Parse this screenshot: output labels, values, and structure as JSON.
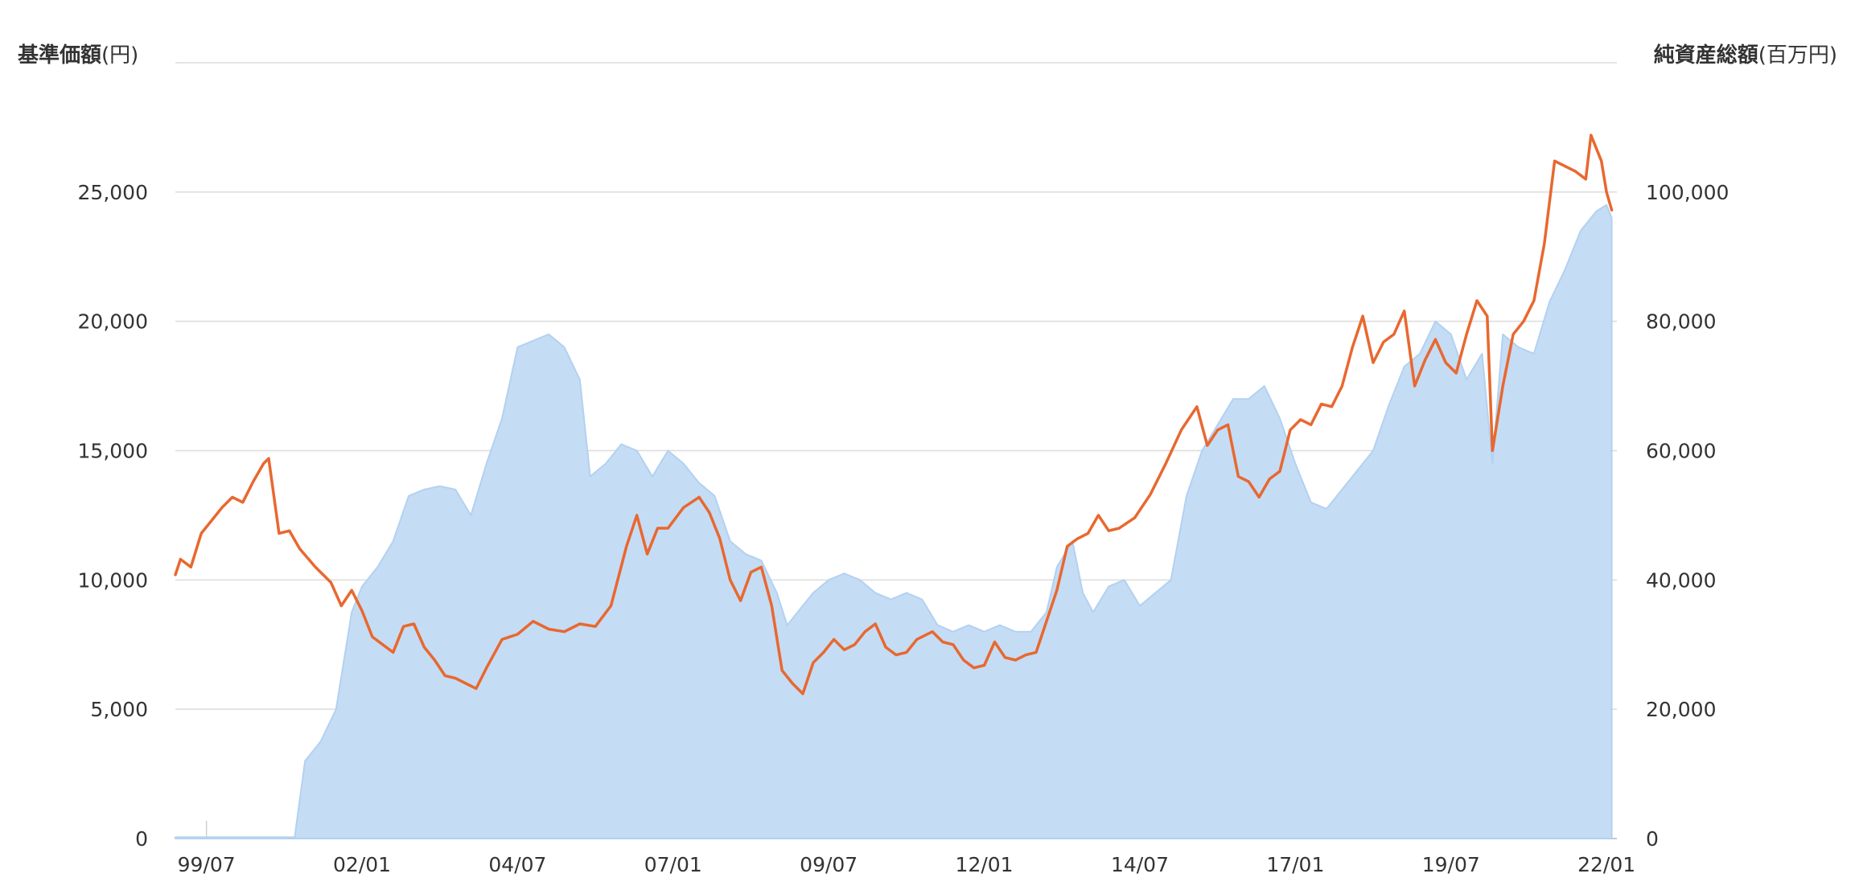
{
  "chart_data": {
    "type": "line",
    "left_axis_title": "基準価額",
    "left_axis_unit": "(円)",
    "right_axis_title": "純資産総額",
    "right_axis_unit": "(百万円)",
    "left_ylim": [
      0,
      30000
    ],
    "left_ticks": [
      {
        "value": 0,
        "label": "0"
      },
      {
        "value": 5000,
        "label": "5,000"
      },
      {
        "value": 10000,
        "label": "10,000"
      },
      {
        "value": 15000,
        "label": "15,000"
      },
      {
        "value": 20000,
        "label": "20,000"
      },
      {
        "value": 25000,
        "label": "25,000"
      }
    ],
    "right_ylim": [
      0,
      120000
    ],
    "right_ticks": [
      {
        "value": 0,
        "label": "0"
      },
      {
        "value": 20000,
        "label": "20,000"
      },
      {
        "value": 40000,
        "label": "40,000"
      },
      {
        "value": 60000,
        "label": "60,000"
      },
      {
        "value": 80000,
        "label": "80,000"
      },
      {
        "value": 100000,
        "label": "100,000"
      }
    ],
    "x_range": [
      "1999-01",
      "2022-03"
    ],
    "x_ticks": [
      {
        "date": "1999-07",
        "label": "99/07"
      },
      {
        "date": "2002-01",
        "label": "02/01"
      },
      {
        "date": "2004-07",
        "label": "04/07"
      },
      {
        "date": "2007-01",
        "label": "07/01"
      },
      {
        "date": "2009-07",
        "label": "09/07"
      },
      {
        "date": "2012-01",
        "label": "12/01"
      },
      {
        "date": "2014-07",
        "label": "14/07"
      },
      {
        "date": "2017-01",
        "label": "17/01"
      },
      {
        "date": "2019-07",
        "label": "19/07"
      },
      {
        "date": "2022-01",
        "label": "22/01"
      }
    ],
    "grid": true,
    "series": [
      {
        "key": "nav",
        "axis": "left",
        "kind": "line",
        "color": "#e8682f",
        "points": [
          [
            "1999-01",
            10200
          ],
          [
            "1999-02",
            10800
          ],
          [
            "1999-04",
            10500
          ],
          [
            "1999-06",
            11800
          ],
          [
            "1999-08",
            12300
          ],
          [
            "1999-10",
            12800
          ],
          [
            "1999-12",
            13200
          ],
          [
            "2000-02",
            13000
          ],
          [
            "2000-04",
            13800
          ],
          [
            "2000-06",
            14500
          ],
          [
            "2000-07",
            14700
          ],
          [
            "2000-09",
            11800
          ],
          [
            "2000-11",
            11900
          ],
          [
            "2001-01",
            11200
          ],
          [
            "2001-04",
            10500
          ],
          [
            "2001-07",
            9900
          ],
          [
            "2001-09",
            9000
          ],
          [
            "2001-11",
            9600
          ],
          [
            "2002-01",
            8800
          ],
          [
            "2002-03",
            7800
          ],
          [
            "2002-05",
            7500
          ],
          [
            "2002-07",
            7200
          ],
          [
            "2002-09",
            8200
          ],
          [
            "2002-11",
            8300
          ],
          [
            "2003-01",
            7400
          ],
          [
            "2003-03",
            6900
          ],
          [
            "2003-05",
            6300
          ],
          [
            "2003-07",
            6200
          ],
          [
            "2003-09",
            6000
          ],
          [
            "2003-11",
            5800
          ],
          [
            "2004-01",
            6600
          ],
          [
            "2004-04",
            7700
          ],
          [
            "2004-07",
            7900
          ],
          [
            "2004-10",
            8400
          ],
          [
            "2005-01",
            8100
          ],
          [
            "2005-04",
            8000
          ],
          [
            "2005-07",
            8300
          ],
          [
            "2005-10",
            8200
          ],
          [
            "2006-01",
            9000
          ],
          [
            "2006-04",
            11300
          ],
          [
            "2006-06",
            12500
          ],
          [
            "2006-08",
            11000
          ],
          [
            "2006-10",
            12000
          ],
          [
            "2006-12",
            12000
          ],
          [
            "2007-03",
            12800
          ],
          [
            "2007-06",
            13200
          ],
          [
            "2007-08",
            12600
          ],
          [
            "2007-10",
            11600
          ],
          [
            "2007-12",
            10000
          ],
          [
            "2008-02",
            9200
          ],
          [
            "2008-04",
            10300
          ],
          [
            "2008-06",
            10500
          ],
          [
            "2008-08",
            9000
          ],
          [
            "2008-10",
            6500
          ],
          [
            "2008-12",
            6000
          ],
          [
            "2009-02",
            5600
          ],
          [
            "2009-04",
            6800
          ],
          [
            "2009-06",
            7200
          ],
          [
            "2009-08",
            7700
          ],
          [
            "2009-10",
            7300
          ],
          [
            "2009-12",
            7500
          ],
          [
            "2010-02",
            8000
          ],
          [
            "2010-04",
            8300
          ],
          [
            "2010-06",
            7400
          ],
          [
            "2010-08",
            7100
          ],
          [
            "2010-10",
            7200
          ],
          [
            "2010-12",
            7700
          ],
          [
            "2011-03",
            8000
          ],
          [
            "2011-05",
            7600
          ],
          [
            "2011-07",
            7500
          ],
          [
            "2011-09",
            6900
          ],
          [
            "2011-11",
            6600
          ],
          [
            "2012-01",
            6700
          ],
          [
            "2012-03",
            7600
          ],
          [
            "2012-05",
            7000
          ],
          [
            "2012-07",
            6900
          ],
          [
            "2012-09",
            7100
          ],
          [
            "2012-11",
            7200
          ],
          [
            "2013-01",
            8400
          ],
          [
            "2013-03",
            9600
          ],
          [
            "2013-05",
            11300
          ],
          [
            "2013-07",
            11600
          ],
          [
            "2013-09",
            11800
          ],
          [
            "2013-11",
            12500
          ],
          [
            "2014-01",
            11900
          ],
          [
            "2014-03",
            12000
          ],
          [
            "2014-06",
            12400
          ],
          [
            "2014-09",
            13300
          ],
          [
            "2014-12",
            14500
          ],
          [
            "2015-03",
            15800
          ],
          [
            "2015-06",
            16700
          ],
          [
            "2015-08",
            15200
          ],
          [
            "2015-10",
            15800
          ],
          [
            "2015-12",
            16000
          ],
          [
            "2016-02",
            14000
          ],
          [
            "2016-04",
            13800
          ],
          [
            "2016-06",
            13200
          ],
          [
            "2016-08",
            13900
          ],
          [
            "2016-10",
            14200
          ],
          [
            "2016-12",
            15800
          ],
          [
            "2017-02",
            16200
          ],
          [
            "2017-04",
            16000
          ],
          [
            "2017-06",
            16800
          ],
          [
            "2017-08",
            16700
          ],
          [
            "2017-10",
            17500
          ],
          [
            "2017-12",
            19000
          ],
          [
            "2018-02",
            20200
          ],
          [
            "2018-04",
            18400
          ],
          [
            "2018-06",
            19200
          ],
          [
            "2018-08",
            19500
          ],
          [
            "2018-10",
            20400
          ],
          [
            "2018-12",
            17500
          ],
          [
            "2019-02",
            18500
          ],
          [
            "2019-04",
            19300
          ],
          [
            "2019-06",
            18400
          ],
          [
            "2019-08",
            18000
          ],
          [
            "2019-10",
            19500
          ],
          [
            "2019-12",
            20800
          ],
          [
            "2020-02",
            20200
          ],
          [
            "2020-03",
            15000
          ],
          [
            "2020-05",
            17500
          ],
          [
            "2020-07",
            19500
          ],
          [
            "2020-09",
            20000
          ],
          [
            "2020-11",
            20800
          ],
          [
            "2021-01",
            23000
          ],
          [
            "2021-03",
            26200
          ],
          [
            "2021-05",
            26000
          ],
          [
            "2021-07",
            25800
          ],
          [
            "2021-09",
            25500
          ],
          [
            "2021-10",
            27200
          ],
          [
            "2021-12",
            26200
          ],
          [
            "2022-01",
            25000
          ],
          [
            "2022-02",
            24300
          ]
        ]
      },
      {
        "key": "net_assets",
        "axis": "right",
        "kind": "area",
        "color": "#c5dcf5",
        "points": [
          [
            "1999-01",
            200
          ],
          [
            "2000-12",
            200
          ],
          [
            "2001-02",
            12000
          ],
          [
            "2001-05",
            15000
          ],
          [
            "2001-08",
            20000
          ],
          [
            "2001-11",
            35000
          ],
          [
            "2002-01",
            39000
          ],
          [
            "2002-04",
            42000
          ],
          [
            "2002-07",
            46000
          ],
          [
            "2002-10",
            53000
          ],
          [
            "2003-01",
            54000
          ],
          [
            "2003-04",
            54500
          ],
          [
            "2003-07",
            54000
          ],
          [
            "2003-10",
            50000
          ],
          [
            "2004-01",
            58000
          ],
          [
            "2004-04",
            65000
          ],
          [
            "2004-07",
            76000
          ],
          [
            "2004-10",
            77000
          ],
          [
            "2005-01",
            78000
          ],
          [
            "2005-04",
            76000
          ],
          [
            "2005-07",
            71000
          ],
          [
            "2005-09",
            56000
          ],
          [
            "2005-12",
            58000
          ],
          [
            "2006-03",
            61000
          ],
          [
            "2006-06",
            60000
          ],
          [
            "2006-09",
            56000
          ],
          [
            "2006-12",
            60000
          ],
          [
            "2007-03",
            58000
          ],
          [
            "2007-06",
            55000
          ],
          [
            "2007-09",
            53000
          ],
          [
            "2007-12",
            46000
          ],
          [
            "2008-03",
            44000
          ],
          [
            "2008-06",
            43000
          ],
          [
            "2008-09",
            38000
          ],
          [
            "2008-11",
            33000
          ],
          [
            "2009-01",
            35000
          ],
          [
            "2009-04",
            38000
          ],
          [
            "2009-07",
            40000
          ],
          [
            "2009-10",
            41000
          ],
          [
            "2010-01",
            40000
          ],
          [
            "2010-04",
            38000
          ],
          [
            "2010-07",
            37000
          ],
          [
            "2010-10",
            38000
          ],
          [
            "2011-01",
            37000
          ],
          [
            "2011-04",
            33000
          ],
          [
            "2011-07",
            32000
          ],
          [
            "2011-10",
            33000
          ],
          [
            "2012-01",
            32000
          ],
          [
            "2012-04",
            33000
          ],
          [
            "2012-07",
            32000
          ],
          [
            "2012-10",
            32000
          ],
          [
            "2013-01",
            35000
          ],
          [
            "2013-03",
            42000
          ],
          [
            "2013-06",
            46000
          ],
          [
            "2013-08",
            38000
          ],
          [
            "2013-10",
            35000
          ],
          [
            "2014-01",
            39000
          ],
          [
            "2014-04",
            40000
          ],
          [
            "2014-07",
            36000
          ],
          [
            "2014-10",
            38000
          ],
          [
            "2015-01",
            40000
          ],
          [
            "2015-04",
            53000
          ],
          [
            "2015-07",
            60000
          ],
          [
            "2015-10",
            64000
          ],
          [
            "2016-01",
            68000
          ],
          [
            "2016-04",
            68000
          ],
          [
            "2016-07",
            70000
          ],
          [
            "2016-10",
            65000
          ],
          [
            "2017-01",
            58000
          ],
          [
            "2017-04",
            52000
          ],
          [
            "2017-07",
            51000
          ],
          [
            "2017-10",
            54000
          ],
          [
            "2018-01",
            57000
          ],
          [
            "2018-04",
            60000
          ],
          [
            "2018-07",
            67000
          ],
          [
            "2018-10",
            73000
          ],
          [
            "2019-01",
            75000
          ],
          [
            "2019-04",
            80000
          ],
          [
            "2019-07",
            78000
          ],
          [
            "2019-10",
            71000
          ],
          [
            "2020-01",
            75000
          ],
          [
            "2020-03",
            58000
          ],
          [
            "2020-05",
            78000
          ],
          [
            "2020-08",
            76000
          ],
          [
            "2020-11",
            75000
          ],
          [
            "2021-02",
            83000
          ],
          [
            "2021-05",
            88000
          ],
          [
            "2021-08",
            94000
          ],
          [
            "2021-11",
            97000
          ],
          [
            "2022-01",
            98000
          ],
          [
            "2022-02",
            96000
          ]
        ]
      }
    ]
  }
}
